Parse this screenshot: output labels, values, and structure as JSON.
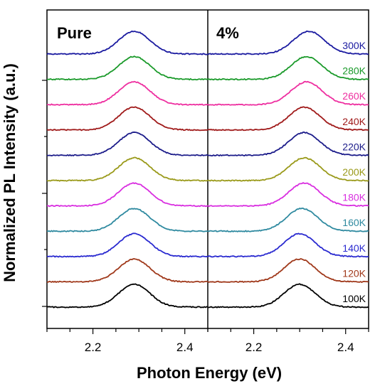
{
  "chart_data": {
    "type": "line",
    "xlabel": "Photon Energy (eV)",
    "ylabel": "Normalized PL Intensity (a.u.)",
    "xlim": [
      2.1,
      2.45
    ],
    "x_ticks": [
      "2.2",
      "2.4"
    ],
    "panels": [
      {
        "label": "Pure",
        "peak_eV": [
          2.29,
          2.29,
          2.29,
          2.29,
          2.29,
          2.29,
          2.29,
          2.29,
          2.29,
          2.29,
          2.29
        ]
      },
      {
        "label": "4%",
        "peak_eV": [
          2.3,
          2.3,
          2.3,
          2.305,
          2.31,
          2.31,
          2.31,
          2.31,
          2.315,
          2.315,
          2.32
        ]
      }
    ],
    "series": [
      {
        "name": "100K",
        "color": "#000000"
      },
      {
        "name": "120K",
        "color": "#a0391b"
      },
      {
        "name": "140K",
        "color": "#2a2ad0"
      },
      {
        "name": "160K",
        "color": "#2f8aa0"
      },
      {
        "name": "180K",
        "color": "#d92ee0"
      },
      {
        "name": "200K",
        "color": "#9a9a1a"
      },
      {
        "name": "220K",
        "color": "#1c1c8a"
      },
      {
        "name": "240K",
        "color": "#a01a1a"
      },
      {
        "name": "260K",
        "color": "#ee2fa0"
      },
      {
        "name": "280K",
        "color": "#1a9a2a"
      },
      {
        "name": "300K",
        "color": "#1a1aa0"
      }
    ],
    "grid": false
  }
}
